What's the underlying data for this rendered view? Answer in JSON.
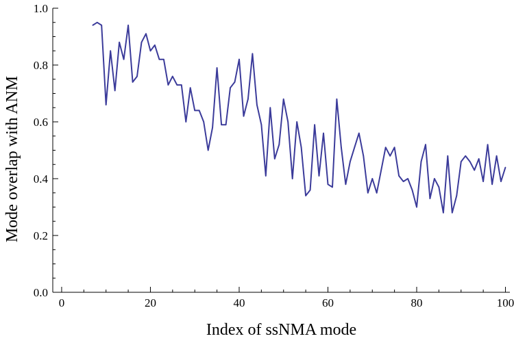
{
  "chart_data": {
    "type": "line",
    "xlabel": "Index of ssNMA mode",
    "ylabel": "Mode overlap with ANM",
    "xlim": [
      -2,
      101
    ],
    "ylim": [
      0.0,
      1.0
    ],
    "x_ticks": [
      0,
      20,
      40,
      60,
      80,
      100
    ],
    "y_ticks": [
      0.0,
      0.2,
      0.4,
      0.6,
      0.8,
      1.0
    ],
    "x_tick_labels": [
      "0",
      "20",
      "40",
      "60",
      "80",
      "100"
    ],
    "y_tick_labels": [
      "0.0",
      "0.2",
      "0.4",
      "0.6",
      "0.8",
      "1.0"
    ],
    "x_minor_step": 5,
    "y_minor_step": 0.05,
    "grid": false,
    "series_color": "#3b3b9a",
    "series": [
      {
        "x": [
          7,
          8,
          9,
          10,
          11,
          12,
          13,
          14,
          15,
          16,
          17,
          18,
          19,
          20,
          21,
          22,
          23,
          24,
          25,
          26,
          27,
          28,
          29,
          30,
          31,
          32,
          33,
          34,
          35,
          36,
          37,
          38,
          39,
          40,
          41,
          42,
          43,
          44,
          45,
          46,
          47,
          48,
          49,
          50,
          51,
          52,
          53,
          54,
          55,
          56,
          57,
          58,
          59,
          60,
          61,
          62,
          63,
          64,
          65,
          66,
          67,
          68,
          69,
          70,
          71,
          72,
          73,
          74,
          75,
          76,
          77,
          78,
          79,
          80,
          81,
          82,
          83,
          84,
          85,
          86,
          87,
          88,
          89,
          90,
          91,
          92,
          93,
          94,
          95,
          96,
          97,
          98,
          99,
          100
        ],
        "values": [
          0.94,
          0.95,
          0.94,
          0.66,
          0.85,
          0.71,
          0.88,
          0.82,
          0.94,
          0.74,
          0.76,
          0.88,
          0.91,
          0.85,
          0.87,
          0.82,
          0.82,
          0.73,
          0.76,
          0.73,
          0.73,
          0.6,
          0.72,
          0.64,
          0.64,
          0.6,
          0.5,
          0.58,
          0.79,
          0.59,
          0.59,
          0.72,
          0.74,
          0.82,
          0.62,
          0.68,
          0.84,
          0.66,
          0.59,
          0.41,
          0.65,
          0.47,
          0.52,
          0.68,
          0.6,
          0.4,
          0.6,
          0.51,
          0.34,
          0.36,
          0.59,
          0.41,
          0.56,
          0.38,
          0.37,
          0.68,
          0.51,
          0.38,
          0.46,
          0.51,
          0.56,
          0.48,
          0.35,
          0.4,
          0.35,
          0.43,
          0.51,
          0.48,
          0.51,
          0.41,
          0.39,
          0.4,
          0.36,
          0.3,
          0.46,
          0.52,
          0.33,
          0.4,
          0.37,
          0.28,
          0.48,
          0.28,
          0.34,
          0.46,
          0.48,
          0.46,
          0.43,
          0.47,
          0.39,
          0.52,
          0.38,
          0.48,
          0.39,
          0.44
        ]
      }
    ]
  }
}
